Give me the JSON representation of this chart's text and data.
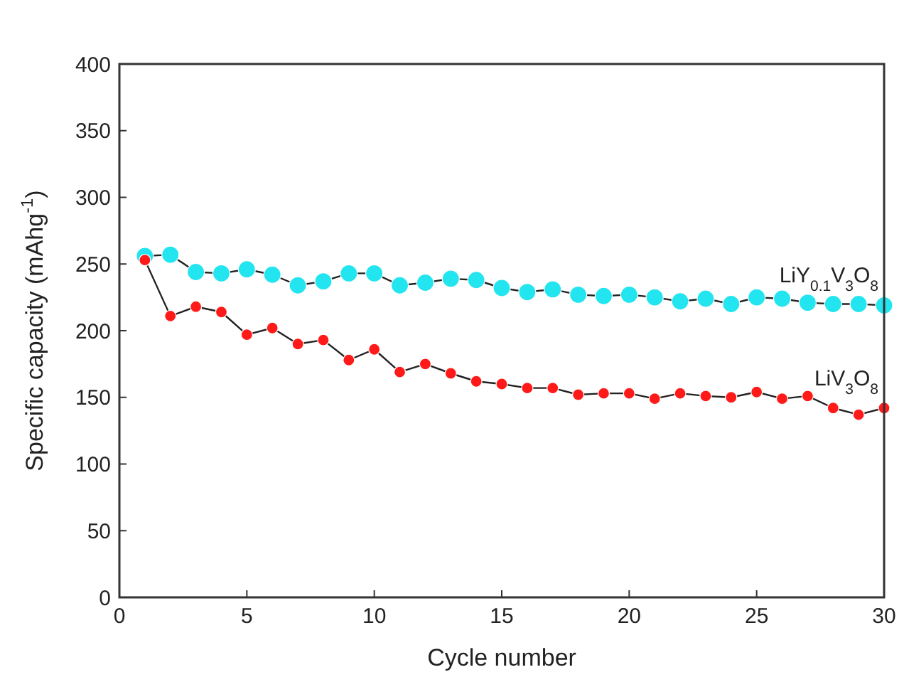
{
  "chart_data": {
    "type": "line",
    "xlabel": "Cycle number",
    "ylabel": "Specific capacity (mAhg$^{-1}$)",
    "x": [
      1,
      2,
      3,
      4,
      5,
      6,
      7,
      8,
      9,
      10,
      11,
      12,
      13,
      14,
      15,
      16,
      17,
      18,
      19,
      20,
      21,
      22,
      23,
      24,
      25,
      26,
      27,
      28,
      29,
      30
    ],
    "xlim": [
      0,
      30
    ],
    "xticks": [
      0,
      5,
      10,
      15,
      20,
      25,
      30
    ],
    "ylim": [
      0,
      400
    ],
    "yticks": [
      0,
      50,
      100,
      150,
      200,
      250,
      300,
      350,
      400
    ],
    "marker": "circle",
    "line_style": "solid",
    "grid": false,
    "series": [
      {
        "name": "LiY$_{0.1}$V$_{3}$O$_{8}$",
        "color": "#22e5f0",
        "values": [
          256,
          257,
          244,
          243,
          246,
          242,
          234,
          237,
          243,
          243,
          234,
          236,
          239,
          238,
          232,
          229,
          231,
          227,
          226,
          227,
          225,
          222,
          224,
          220,
          225,
          224,
          221,
          220,
          220,
          219
        ]
      },
      {
        "name": "LiV$_{3}$O$_{8}$",
        "color": "#ff1a1a",
        "values": [
          253,
          211,
          218,
          214,
          197,
          202,
          190,
          193,
          178,
          186,
          169,
          175,
          168,
          162,
          160,
          157,
          157,
          152,
          153,
          153,
          149,
          153,
          151,
          150,
          154,
          149,
          151,
          142,
          137,
          142
        ]
      }
    ]
  }
}
